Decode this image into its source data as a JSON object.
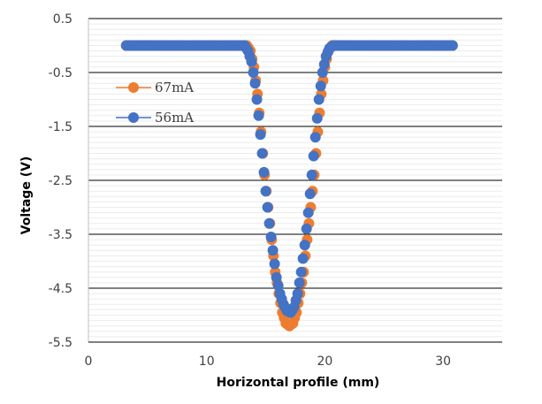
{
  "chart_data": {
    "type": "scatter",
    "title": "",
    "xlabel": "Horizontal profile (mm)",
    "ylabel": "Voltage (V)",
    "xlim": [
      0,
      35
    ],
    "ylim": [
      -5.5,
      0.5
    ],
    "xticks": [
      0,
      10,
      20,
      30
    ],
    "xtick_labels": [
      "0",
      "10",
      "20",
      "30"
    ],
    "yticks": [
      0.5,
      -0.5,
      -1.5,
      -2.5,
      -3.5,
      -4.5,
      -5.5
    ],
    "ytick_labels": [
      "0.5",
      "-0.5",
      "-1.5",
      "-2.5",
      "-3.5",
      "-4.5",
      "-5.5"
    ],
    "grid": {
      "major_y": true,
      "minor_y": true
    },
    "legend_position": "top-left",
    "series": [
      {
        "name": "67mA",
        "color": "#ED7D31",
        "points": [
          [
            3.2,
            0.0
          ],
          [
            6.0,
            0.0
          ],
          [
            9.0,
            0.0
          ],
          [
            12.0,
            0.0
          ],
          [
            13.4,
            0.0
          ],
          [
            13.7,
            -0.1
          ],
          [
            14.0,
            -0.4
          ],
          [
            14.3,
            -0.9
          ],
          [
            14.6,
            -1.6
          ],
          [
            14.9,
            -2.4
          ],
          [
            15.2,
            -3.0
          ],
          [
            15.5,
            -3.6
          ],
          [
            15.8,
            -4.2
          ],
          [
            16.1,
            -4.6
          ],
          [
            16.4,
            -4.95
          ],
          [
            16.7,
            -5.15
          ],
          [
            17.0,
            -5.2
          ],
          [
            17.3,
            -5.15
          ],
          [
            17.6,
            -4.95
          ],
          [
            17.9,
            -4.6
          ],
          [
            18.2,
            -4.2
          ],
          [
            18.5,
            -3.6
          ],
          [
            18.8,
            -3.0
          ],
          [
            19.1,
            -2.4
          ],
          [
            19.4,
            -1.6
          ],
          [
            19.7,
            -0.9
          ],
          [
            20.0,
            -0.4
          ],
          [
            20.3,
            -0.1
          ],
          [
            20.6,
            0.0
          ],
          [
            22.0,
            0.0
          ],
          [
            25.0,
            0.0
          ],
          [
            28.0,
            0.0
          ],
          [
            30.8,
            0.0
          ]
        ]
      },
      {
        "name": "56mA",
        "color": "#4472C4",
        "points": [
          [
            3.2,
            0.0
          ],
          [
            6.0,
            0.0
          ],
          [
            9.0,
            0.0
          ],
          [
            12.0,
            0.0
          ],
          [
            13.2,
            0.0
          ],
          [
            13.5,
            -0.1
          ],
          [
            13.8,
            -0.3
          ],
          [
            14.1,
            -0.7
          ],
          [
            14.4,
            -1.3
          ],
          [
            14.7,
            -2.0
          ],
          [
            15.0,
            -2.7
          ],
          [
            15.3,
            -3.3
          ],
          [
            15.6,
            -3.8
          ],
          [
            15.9,
            -4.3
          ],
          [
            16.2,
            -4.6
          ],
          [
            16.5,
            -4.8
          ],
          [
            16.8,
            -4.92
          ],
          [
            17.1,
            -4.95
          ],
          [
            17.4,
            -4.85
          ],
          [
            17.7,
            -4.6
          ],
          [
            18.0,
            -4.2
          ],
          [
            18.3,
            -3.7
          ],
          [
            18.6,
            -3.1
          ],
          [
            18.9,
            -2.4
          ],
          [
            19.2,
            -1.7
          ],
          [
            19.5,
            -1.0
          ],
          [
            19.8,
            -0.5
          ],
          [
            20.1,
            -0.2
          ],
          [
            20.4,
            -0.05
          ],
          [
            20.7,
            0.0
          ],
          [
            22.0,
            0.0
          ],
          [
            25.0,
            0.0
          ],
          [
            28.0,
            0.0
          ],
          [
            30.8,
            0.0
          ]
        ]
      }
    ]
  }
}
